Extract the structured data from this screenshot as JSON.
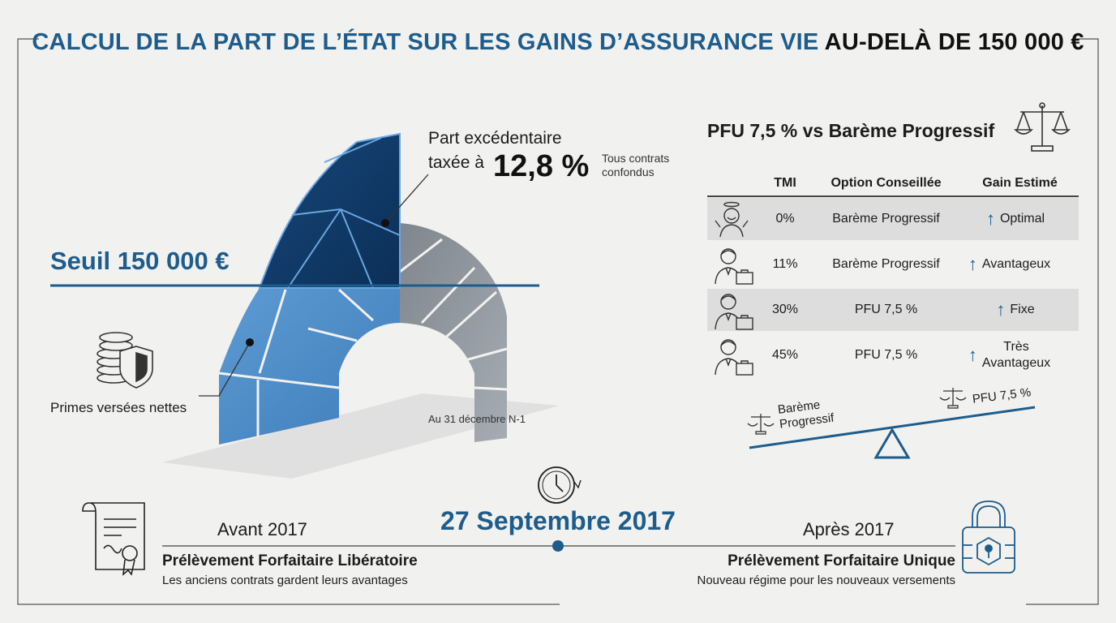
{
  "title": {
    "part1": "CALCUL DE LA PART DE L’ÉTAT SUR LES GAINS D’ASSURANCE VIE",
    "part2": "AU-DELÀ DE 150 000 €"
  },
  "arch": {
    "excess_label_line1": "Part excédentaire",
    "excess_label_line2": "taxée à",
    "excess_rate": "12,8 %",
    "excess_note_line1": "Tous contrats",
    "excess_note_line2": "confondus",
    "threshold_label": "Seuil 150 000 €",
    "premiums_label": "Primes versées nettes",
    "date_label": "Au 31 décembre N-1",
    "icons": [
      "coins-shield-icon"
    ]
  },
  "comparison": {
    "title": "PFU 7,5 % vs Barème Progressif",
    "icon": "scales-icon",
    "headers": {
      "tmi": "TMI",
      "option": "Option Conseillée",
      "gain": "Gain Estimé"
    },
    "rows": [
      {
        "icon": "happy-person-icon",
        "tmi": "0%",
        "option": "Barème Progressif",
        "gain_line1": "Optimal",
        "gain_line2": "",
        "shaded": true
      },
      {
        "icon": "businessman-icon",
        "tmi": "11%",
        "option": "Barème Progressif",
        "gain_line1": "Avantageux",
        "gain_line2": "",
        "shaded": false
      },
      {
        "icon": "businessman-icon",
        "tmi": "30%",
        "option": "PFU 7,5 %",
        "gain_line1": "Fixe",
        "gain_line2": "",
        "shaded": true
      },
      {
        "icon": "businessman-icon",
        "tmi": "45%",
        "option": "PFU 7,5 %",
        "gain_line1": "Très",
        "gain_line2": "Avantageux",
        "shaded": false
      }
    ],
    "balance_left_line1": "Barème",
    "balance_left_line2": "Progressif",
    "balance_right": "PFU 7,5 %"
  },
  "timeline": {
    "date": "27 Septembre 2017",
    "before_label": "Avant 2017",
    "before_title": "Prélèvement Forfaitaire Libératoire",
    "before_sub": "Les anciens contrats gardent leurs avantages",
    "after_label": "Après 2017",
    "after_title": "Prélèvement Forfaitaire Unique",
    "after_sub": "Nouveau régime pour les nouveaux versements",
    "icons": [
      "clock-icon",
      "certificate-icon",
      "padlock-icon"
    ]
  },
  "colors": {
    "accent": "#1e5c8c",
    "dark_blue": "#0e3f6e",
    "mid_blue": "#4f8fc8",
    "grey": "#8f969e",
    "background": "#f1f1ef"
  }
}
